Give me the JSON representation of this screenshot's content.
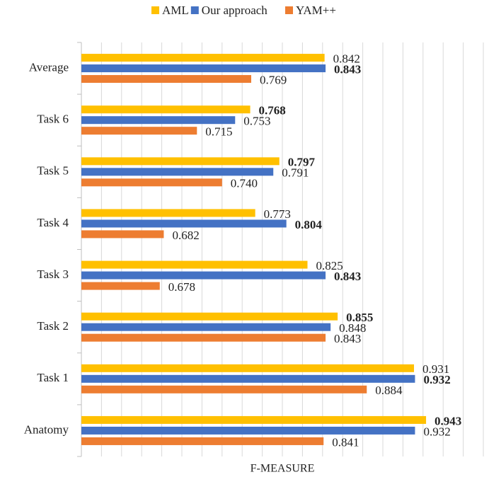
{
  "chart_data": {
    "type": "hbar",
    "x_label": "F-MEASURE",
    "categories": [
      "Average",
      "Task 6",
      "Task 5",
      "Task 4",
      "Task 3",
      "Task 2",
      "Task 1",
      "Anatomy"
    ],
    "series": [
      {
        "name": "AML",
        "color": "#ffc000",
        "values": [
          0.842,
          0.768,
          0.797,
          0.773,
          0.825,
          0.855,
          0.931,
          0.943
        ],
        "value_labels": [
          "0.842",
          "0.768",
          "0.797",
          "0.773",
          "0.825",
          "0.855",
          "0.931",
          "0.943"
        ]
      },
      {
        "name": "Our approach",
        "color": "#4472c4",
        "values": [
          0.843,
          0.753,
          0.791,
          0.804,
          0.843,
          0.848,
          0.932,
          0.932
        ],
        "value_labels": [
          "0.843",
          "0.753",
          "0.791",
          "0.804",
          "0.843",
          "0.848",
          "0.932",
          "0.932"
        ]
      },
      {
        "name": "YAM++",
        "color": "#ed7d31",
        "values": [
          0.769,
          0.715,
          0.74,
          0.682,
          0.678,
          0.843,
          0.884,
          0.841
        ],
        "value_labels": [
          "0.769",
          "0.715",
          "0.740",
          "0.682",
          "0.678",
          "0.843",
          "0.884",
          "0.841"
        ]
      }
    ],
    "xlim": [
      0.6,
      1
    ],
    "xticks": [
      0.6,
      0.62,
      0.64,
      0.66,
      0.68,
      0.7,
      0.72,
      0.74,
      0.76,
      0.78,
      0.8,
      0.82,
      0.84,
      0.86,
      0.88,
      0.9,
      0.92,
      0.94,
      0.96,
      0.98,
      1
    ],
    "grid": true,
    "legend": "top"
  }
}
